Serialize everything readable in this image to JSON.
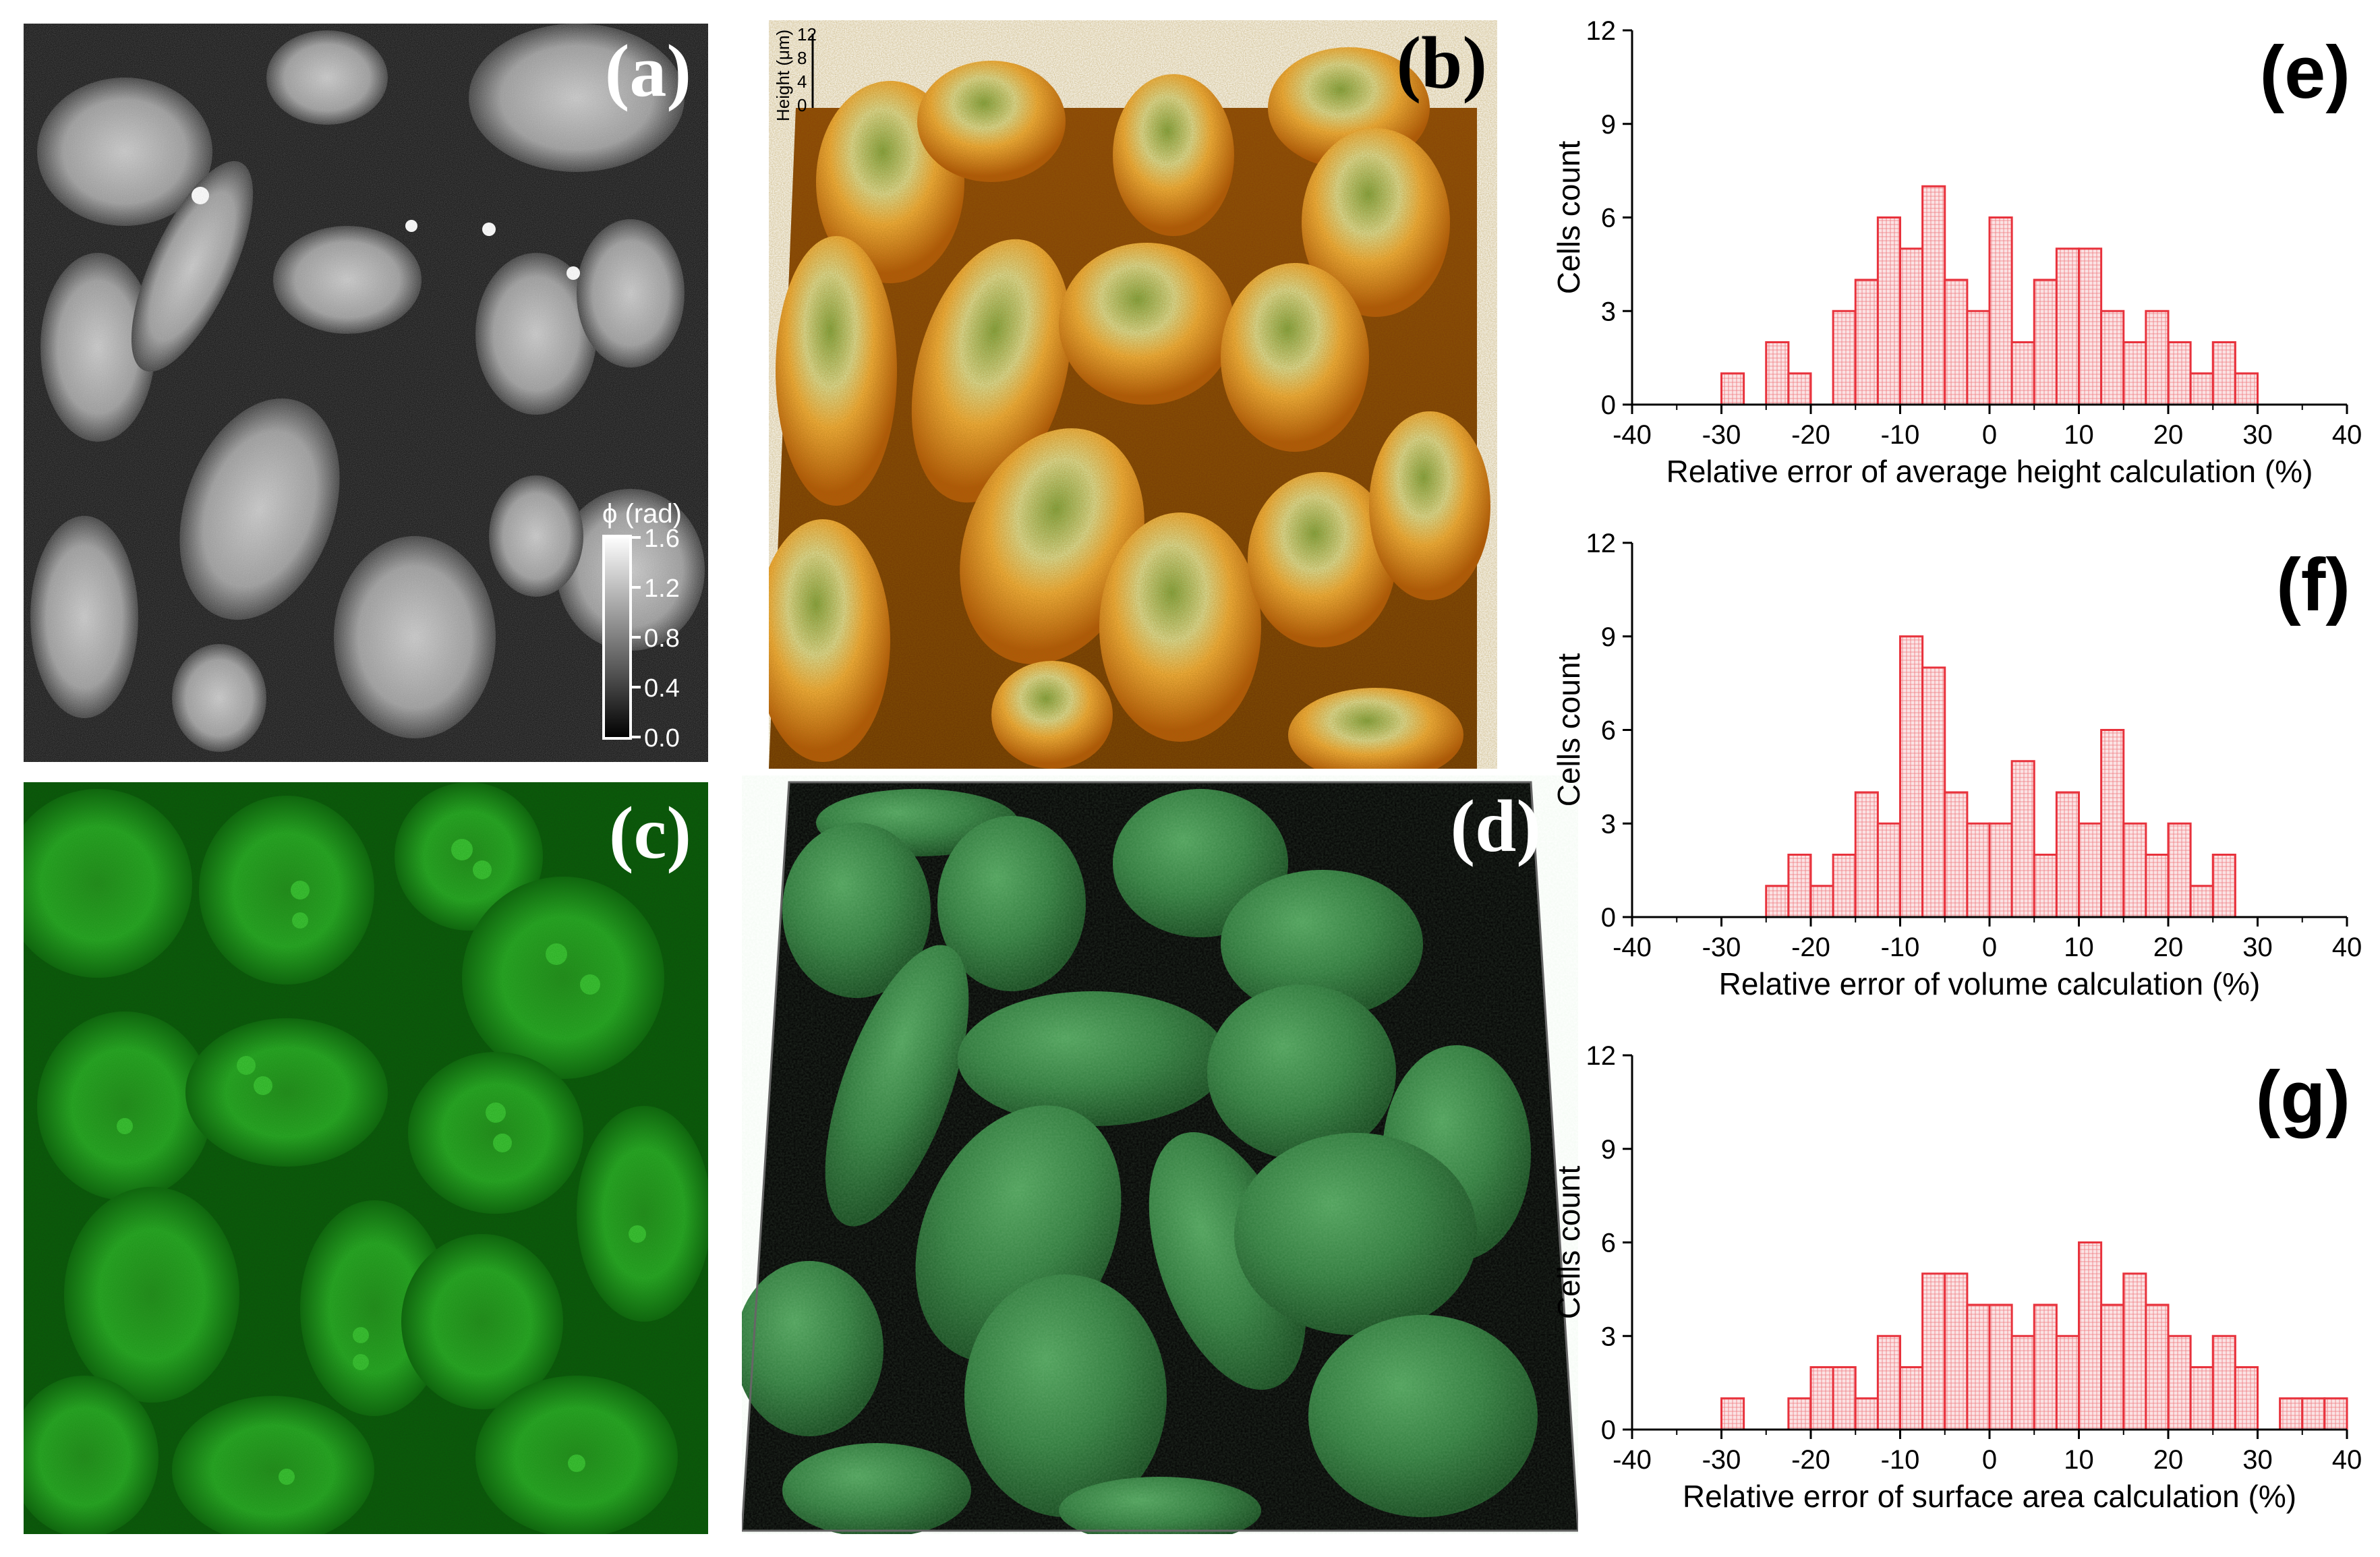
{
  "panels": {
    "a": {
      "label": "(a)",
      "colorbar": {
        "title": "ϕ (rad)",
        "ticks": [
          "1.6",
          "1.2",
          "0.8",
          "0.4",
          "0.0"
        ]
      }
    },
    "b": {
      "label": "(b)",
      "axis_title": "Height (μm)",
      "ticks": [
        "12",
        "8",
        "4",
        "0"
      ]
    },
    "c": {
      "label": "(c)"
    },
    "d": {
      "label": "(d)"
    }
  },
  "chart_data": [
    {
      "type": "bar",
      "label": "(e)",
      "xlabel": "Relative error of average height calculation (%)",
      "ylabel": "Cells count",
      "xlim": [
        -40,
        40
      ],
      "ylim": [
        0,
        12
      ],
      "xticks": [
        "-40",
        "-30",
        "-20",
        "-10",
        "0",
        "10",
        "20",
        "30",
        "40"
      ],
      "yticks": [
        "0",
        "3",
        "6",
        "9",
        "12"
      ],
      "bin_width": 2.5,
      "bins": [
        -30,
        -25,
        -22.5,
        -17.5,
        -15,
        -12.5,
        -10,
        -7.5,
        -5,
        -2.5,
        0,
        2.5,
        5,
        7.5,
        10,
        12.5,
        15,
        17.5,
        20,
        22.5,
        25,
        27.5
      ],
      "values": [
        1,
        2,
        1,
        3,
        4,
        6,
        5,
        7,
        4,
        3,
        6,
        2,
        4,
        5,
        5,
        3,
        2,
        3,
        2,
        1,
        2,
        1
      ],
      "extra_bins": [
        {
          "x": -30,
          "v": 1
        }
      ],
      "color": "#e8323c"
    },
    {
      "type": "bar",
      "label": "(f)",
      "xlabel": "Relative error of volume calculation (%)",
      "ylabel": "Cells count",
      "xlim": [
        -40,
        40
      ],
      "ylim": [
        0,
        12
      ],
      "xticks": [
        "-40",
        "-30",
        "-20",
        "-10",
        "0",
        "10",
        "20",
        "30",
        "40"
      ],
      "yticks": [
        "0",
        "3",
        "6",
        "9",
        "12"
      ],
      "bin_width": 2.5,
      "bins": [
        -25,
        -22.5,
        -20,
        -17.5,
        -15,
        -12.5,
        -10,
        -7.5,
        -5,
        -2.5,
        0,
        2.5,
        5,
        7.5,
        10,
        12.5,
        15,
        17.5,
        20,
        22.5,
        25
      ],
      "values": [
        1,
        2,
        1,
        2,
        4,
        3,
        9,
        8,
        4,
        3,
        3,
        5,
        2,
        4,
        3,
        6,
        3,
        2,
        3,
        1,
        2
      ],
      "color": "#e8323c"
    },
    {
      "type": "bar",
      "label": "(g)",
      "xlabel": "Relative error of surface area calculation (%)",
      "ylabel": "Cells count",
      "xlim": [
        -40,
        40
      ],
      "ylim": [
        0,
        12
      ],
      "xticks": [
        "-40",
        "-30",
        "-20",
        "-10",
        "0",
        "10",
        "20",
        "30",
        "40"
      ],
      "yticks": [
        "0",
        "3",
        "6",
        "9",
        "12"
      ],
      "bin_width": 2.5,
      "bins": [
        -30,
        -22.5,
        -20,
        -17.5,
        -15,
        -12.5,
        -10,
        -7.5,
        -5,
        -2.5,
        0,
        2.5,
        5,
        7.5,
        10,
        12.5,
        15,
        17.5,
        20,
        22.5,
        25,
        27.5,
        32.5,
        35,
        37.5
      ],
      "values": [
        1,
        1,
        2,
        2,
        1,
        3,
        2,
        5,
        5,
        4,
        4,
        3,
        4,
        3,
        6,
        4,
        5,
        4,
        3,
        2,
        3,
        2,
        1,
        1,
        1
      ],
      "color": "#e8323c"
    }
  ]
}
